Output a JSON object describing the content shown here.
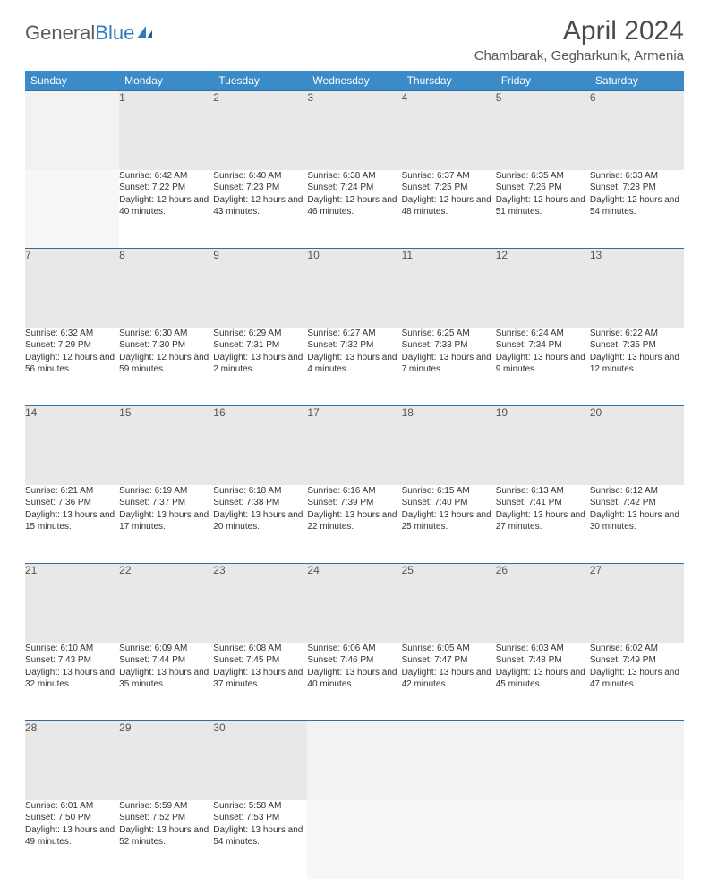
{
  "logo": {
    "text1": "General",
    "text2": "Blue"
  },
  "title": "April 2024",
  "location": "Chambarak, Gegharkunik, Armenia",
  "colors": {
    "header_bg": "#3b8bc9",
    "header_text": "#ffffff",
    "daynum_bg": "#e8e8e8",
    "border": "#2f6fa3",
    "logo_gray": "#5a5a5a",
    "logo_blue": "#2f7bbf"
  },
  "weekdays": [
    "Sunday",
    "Monday",
    "Tuesday",
    "Wednesday",
    "Thursday",
    "Friday",
    "Saturday"
  ],
  "weeks": [
    {
      "nums": [
        "",
        "1",
        "2",
        "3",
        "4",
        "5",
        "6"
      ],
      "cells": [
        null,
        {
          "sunrise": "Sunrise: 6:42 AM",
          "sunset": "Sunset: 7:22 PM",
          "daylight": "Daylight: 12 hours and 40 minutes."
        },
        {
          "sunrise": "Sunrise: 6:40 AM",
          "sunset": "Sunset: 7:23 PM",
          "daylight": "Daylight: 12 hours and 43 minutes."
        },
        {
          "sunrise": "Sunrise: 6:38 AM",
          "sunset": "Sunset: 7:24 PM",
          "daylight": "Daylight: 12 hours and 46 minutes."
        },
        {
          "sunrise": "Sunrise: 6:37 AM",
          "sunset": "Sunset: 7:25 PM",
          "daylight": "Daylight: 12 hours and 48 minutes."
        },
        {
          "sunrise": "Sunrise: 6:35 AM",
          "sunset": "Sunset: 7:26 PM",
          "daylight": "Daylight: 12 hours and 51 minutes."
        },
        {
          "sunrise": "Sunrise: 6:33 AM",
          "sunset": "Sunset: 7:28 PM",
          "daylight": "Daylight: 12 hours and 54 minutes."
        }
      ]
    },
    {
      "nums": [
        "7",
        "8",
        "9",
        "10",
        "11",
        "12",
        "13"
      ],
      "cells": [
        {
          "sunrise": "Sunrise: 6:32 AM",
          "sunset": "Sunset: 7:29 PM",
          "daylight": "Daylight: 12 hours and 56 minutes."
        },
        {
          "sunrise": "Sunrise: 6:30 AM",
          "sunset": "Sunset: 7:30 PM",
          "daylight": "Daylight: 12 hours and 59 minutes."
        },
        {
          "sunrise": "Sunrise: 6:29 AM",
          "sunset": "Sunset: 7:31 PM",
          "daylight": "Daylight: 13 hours and 2 minutes."
        },
        {
          "sunrise": "Sunrise: 6:27 AM",
          "sunset": "Sunset: 7:32 PM",
          "daylight": "Daylight: 13 hours and 4 minutes."
        },
        {
          "sunrise": "Sunrise: 6:25 AM",
          "sunset": "Sunset: 7:33 PM",
          "daylight": "Daylight: 13 hours and 7 minutes."
        },
        {
          "sunrise": "Sunrise: 6:24 AM",
          "sunset": "Sunset: 7:34 PM",
          "daylight": "Daylight: 13 hours and 9 minutes."
        },
        {
          "sunrise": "Sunrise: 6:22 AM",
          "sunset": "Sunset: 7:35 PM",
          "daylight": "Daylight: 13 hours and 12 minutes."
        }
      ]
    },
    {
      "nums": [
        "14",
        "15",
        "16",
        "17",
        "18",
        "19",
        "20"
      ],
      "cells": [
        {
          "sunrise": "Sunrise: 6:21 AM",
          "sunset": "Sunset: 7:36 PM",
          "daylight": "Daylight: 13 hours and 15 minutes."
        },
        {
          "sunrise": "Sunrise: 6:19 AM",
          "sunset": "Sunset: 7:37 PM",
          "daylight": "Daylight: 13 hours and 17 minutes."
        },
        {
          "sunrise": "Sunrise: 6:18 AM",
          "sunset": "Sunset: 7:38 PM",
          "daylight": "Daylight: 13 hours and 20 minutes."
        },
        {
          "sunrise": "Sunrise: 6:16 AM",
          "sunset": "Sunset: 7:39 PM",
          "daylight": "Daylight: 13 hours and 22 minutes."
        },
        {
          "sunrise": "Sunrise: 6:15 AM",
          "sunset": "Sunset: 7:40 PM",
          "daylight": "Daylight: 13 hours and 25 minutes."
        },
        {
          "sunrise": "Sunrise: 6:13 AM",
          "sunset": "Sunset: 7:41 PM",
          "daylight": "Daylight: 13 hours and 27 minutes."
        },
        {
          "sunrise": "Sunrise: 6:12 AM",
          "sunset": "Sunset: 7:42 PM",
          "daylight": "Daylight: 13 hours and 30 minutes."
        }
      ]
    },
    {
      "nums": [
        "21",
        "22",
        "23",
        "24",
        "25",
        "26",
        "27"
      ],
      "cells": [
        {
          "sunrise": "Sunrise: 6:10 AM",
          "sunset": "Sunset: 7:43 PM",
          "daylight": "Daylight: 13 hours and 32 minutes."
        },
        {
          "sunrise": "Sunrise: 6:09 AM",
          "sunset": "Sunset: 7:44 PM",
          "daylight": "Daylight: 13 hours and 35 minutes."
        },
        {
          "sunrise": "Sunrise: 6:08 AM",
          "sunset": "Sunset: 7:45 PM",
          "daylight": "Daylight: 13 hours and 37 minutes."
        },
        {
          "sunrise": "Sunrise: 6:06 AM",
          "sunset": "Sunset: 7:46 PM",
          "daylight": "Daylight: 13 hours and 40 minutes."
        },
        {
          "sunrise": "Sunrise: 6:05 AM",
          "sunset": "Sunset: 7:47 PM",
          "daylight": "Daylight: 13 hours and 42 minutes."
        },
        {
          "sunrise": "Sunrise: 6:03 AM",
          "sunset": "Sunset: 7:48 PM",
          "daylight": "Daylight: 13 hours and 45 minutes."
        },
        {
          "sunrise": "Sunrise: 6:02 AM",
          "sunset": "Sunset: 7:49 PM",
          "daylight": "Daylight: 13 hours and 47 minutes."
        }
      ]
    },
    {
      "nums": [
        "28",
        "29",
        "30",
        "",
        "",
        "",
        ""
      ],
      "cells": [
        {
          "sunrise": "Sunrise: 6:01 AM",
          "sunset": "Sunset: 7:50 PM",
          "daylight": "Daylight: 13 hours and 49 minutes."
        },
        {
          "sunrise": "Sunrise: 5:59 AM",
          "sunset": "Sunset: 7:52 PM",
          "daylight": "Daylight: 13 hours and 52 minutes."
        },
        {
          "sunrise": "Sunrise: 5:58 AM",
          "sunset": "Sunset: 7:53 PM",
          "daylight": "Daylight: 13 hours and 54 minutes."
        },
        null,
        null,
        null,
        null
      ]
    }
  ]
}
